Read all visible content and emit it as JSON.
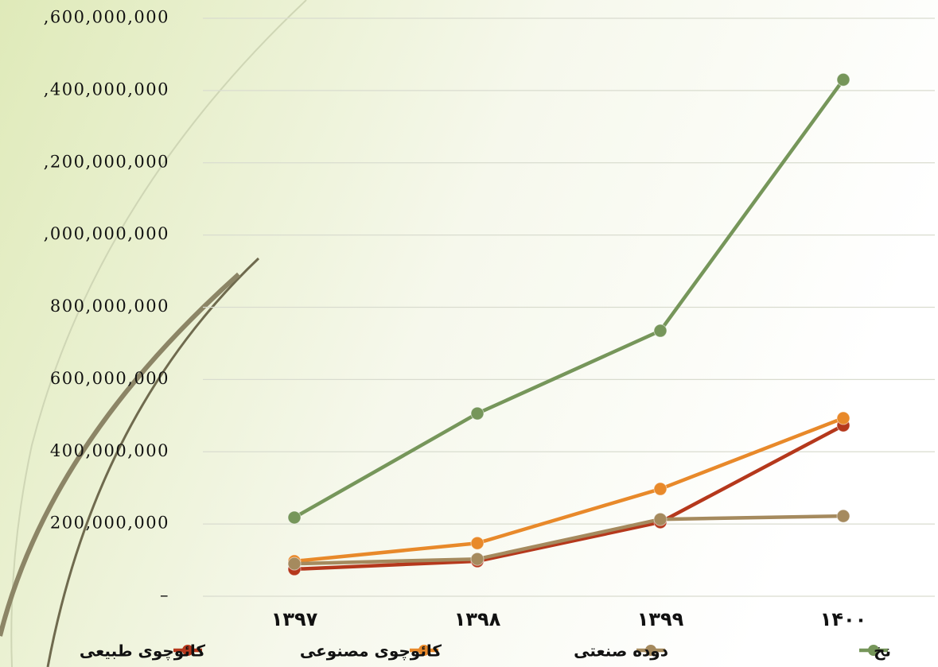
{
  "chart_data": {
    "type": "line",
    "categories": [
      "۱۳۹۷",
      "۱۳۹۸",
      "۱۳۹۹",
      "۱۴۰۰"
    ],
    "series": [
      {
        "name": "کائوچوی طبیعی",
        "color": "#b5381c",
        "values": [
          75000000,
          97000000,
          205000000,
          473000000
        ]
      },
      {
        "name": "کائوچوی مصنوعی",
        "color": "#e8892a",
        "values": [
          97000000,
          147000000,
          297000000,
          493000000
        ]
      },
      {
        "name": "دوده صنعتی",
        "color": "#a58a5e",
        "values": [
          90000000,
          103000000,
          213000000,
          222000000
        ]
      },
      {
        "name": "نخ",
        "color": "#76965a",
        "values": [
          218000000,
          506000000,
          735000000,
          1430000000
        ]
      }
    ],
    "ylim": [
      0,
      1600000000
    ],
    "yticks": [
      {
        "value": 0,
        "label": "–"
      },
      {
        "value": 200000000,
        "label": "200,000,000"
      },
      {
        "value": 400000000,
        "label": "400,000,000"
      },
      {
        "value": 600000000,
        "label": "600,000,000"
      },
      {
        "value": 800000000,
        "label": "800,000,000"
      },
      {
        "value": 1000000000,
        "label": ",000,000,000"
      },
      {
        "value": 1200000000,
        "label": ",200,000,000"
      },
      {
        "value": 1400000000,
        "label": ",400,000,000"
      },
      {
        "value": 1600000000,
        "label": ",600,000,000"
      }
    ],
    "grid": true
  }
}
